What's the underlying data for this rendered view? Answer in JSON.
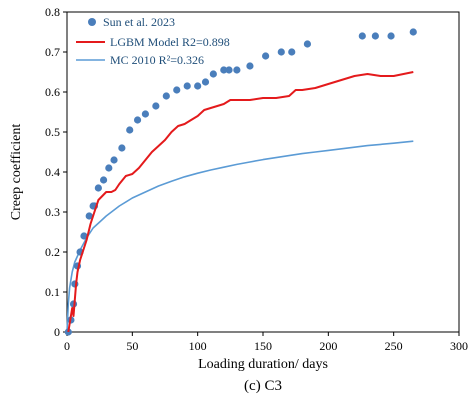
{
  "chart_data": {
    "type": "scatter",
    "xlabel": "Loading duration/ days",
    "ylabel": "Creep coefficient",
    "caption": "(c) C3",
    "xlim": [
      0,
      300
    ],
    "ylim": [
      0,
      0.8
    ],
    "xticks": [
      "0",
      "50",
      "100",
      "150",
      "200",
      "250",
      "300"
    ],
    "yticks": [
      "0",
      "0.1",
      "0.2",
      "0.3",
      "0.4",
      "0.5",
      "0.6",
      "0.7",
      "0.8"
    ],
    "grid": false,
    "legend_position": "top-left",
    "series": [
      {
        "name": "Sun et al. 2023",
        "kind": "scatter",
        "color": "#4a7ebb",
        "x": [
          1,
          3,
          5,
          6,
          8,
          10,
          13,
          17,
          20,
          21,
          24,
          28,
          32,
          36,
          42,
          48,
          54,
          60,
          68,
          76,
          84,
          92,
          100,
          106,
          112,
          120,
          124,
          130,
          140,
          152,
          164,
          172,
          184,
          226,
          236,
          248,
          265
        ],
        "y": [
          0.0,
          0.03,
          0.07,
          0.12,
          0.165,
          0.2,
          0.24,
          0.29,
          0.315,
          0.315,
          0.36,
          0.38,
          0.41,
          0.43,
          0.46,
          0.505,
          0.53,
          0.545,
          0.565,
          0.59,
          0.605,
          0.615,
          0.615,
          0.625,
          0.645,
          0.655,
          0.655,
          0.655,
          0.665,
          0.69,
          0.7,
          0.7,
          0.72,
          0.74,
          0.74,
          0.74,
          0.75
        ]
      },
      {
        "name": "LGBM Model R2=0.898",
        "kind": "line",
        "color": "#e41a1c",
        "x": [
          1,
          3,
          4,
          5,
          6,
          7,
          8,
          10,
          12,
          15,
          18,
          21,
          24,
          27,
          30,
          34,
          37,
          40,
          45,
          50,
          55,
          60,
          65,
          70,
          75,
          80,
          85,
          90,
          95,
          100,
          105,
          110,
          115,
          120,
          125,
          130,
          140,
          150,
          160,
          170,
          175,
          180,
          190,
          200,
          210,
          220,
          230,
          240,
          250,
          265
        ],
        "y": [
          0.0,
          0.04,
          0.06,
          0.04,
          0.08,
          0.12,
          0.15,
          0.18,
          0.2,
          0.23,
          0.27,
          0.3,
          0.33,
          0.34,
          0.35,
          0.35,
          0.355,
          0.37,
          0.39,
          0.395,
          0.41,
          0.43,
          0.45,
          0.465,
          0.48,
          0.5,
          0.515,
          0.52,
          0.53,
          0.54,
          0.555,
          0.56,
          0.565,
          0.57,
          0.58,
          0.58,
          0.58,
          0.585,
          0.585,
          0.59,
          0.605,
          0.605,
          0.61,
          0.62,
          0.63,
          0.64,
          0.645,
          0.64,
          0.64,
          0.65
        ]
      },
      {
        "name": "MC 2010 R²=0.326",
        "kind": "line",
        "color": "#5b9bd5",
        "x": [
          0,
          1,
          2,
          4,
          6,
          8,
          10,
          15,
          20,
          25,
          30,
          40,
          50,
          60,
          70,
          80,
          90,
          100,
          110,
          120,
          130,
          140,
          150,
          160,
          170,
          180,
          190,
          200,
          210,
          220,
          230,
          240,
          250,
          265
        ],
        "y": [
          0.0,
          0.07,
          0.11,
          0.15,
          0.175,
          0.19,
          0.205,
          0.235,
          0.26,
          0.275,
          0.29,
          0.315,
          0.335,
          0.35,
          0.365,
          0.377,
          0.388,
          0.397,
          0.405,
          0.412,
          0.419,
          0.425,
          0.431,
          0.436,
          0.441,
          0.446,
          0.45,
          0.454,
          0.458,
          0.462,
          0.466,
          0.469,
          0.472,
          0.477
        ]
      }
    ]
  }
}
